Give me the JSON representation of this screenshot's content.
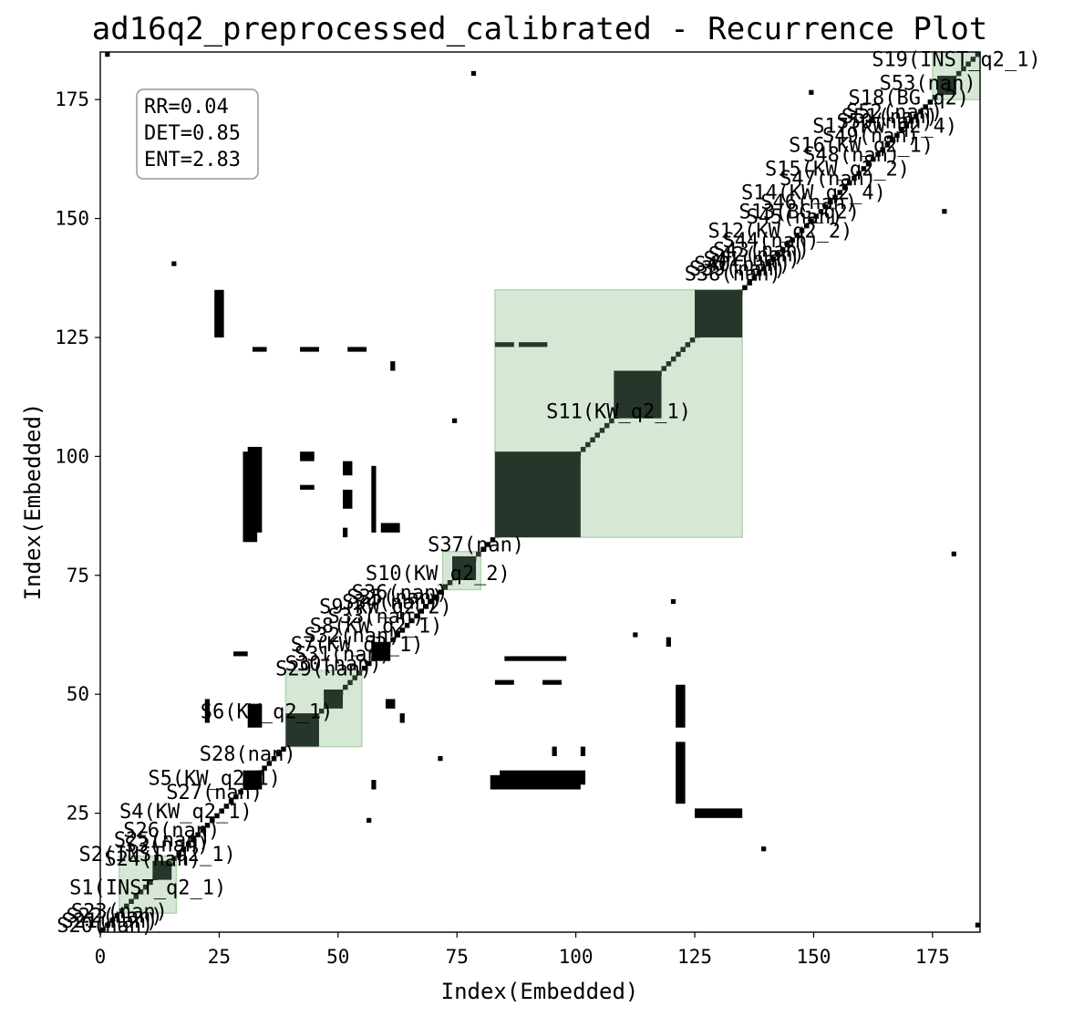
{
  "chart_data": {
    "type": "heatmap",
    "title": "ad16q2_preprocessed_calibrated - Recurrence Plot",
    "xlabel": "Index(Embedded)",
    "ylabel": "Index(Embedded)",
    "xlim": [
      0,
      185
    ],
    "ylim": [
      0,
      185
    ],
    "x_ticks": [
      0,
      25,
      50,
      75,
      100,
      125,
      150,
      175
    ],
    "y_ticks": [
      25,
      50,
      75,
      100,
      125,
      150,
      175
    ],
    "colors": {
      "recurrence": "#000000",
      "in_segment": "#27362a",
      "segment_fill": "#d7e7d6",
      "segment_edge": "#b3d4b1"
    },
    "stats_box": [
      "RR=0.04",
      "DET=0.85",
      "ENT=2.83"
    ],
    "segments": [
      {
        "label": "S1(INST_q2_1)",
        "start": 4,
        "end": 16
      },
      {
        "label": "S6(KW_q2_1)",
        "start": 39,
        "end": 55
      },
      {
        "label": "S10(KW_q2_2)",
        "start": 72,
        "end": 80
      },
      {
        "label": "S11(KW_q2_1)",
        "start": 83,
        "end": 135
      },
      {
        "label": "S19(INST_q2_1)",
        "start": 175,
        "end": 185
      }
    ],
    "segment_labels": [
      {
        "text": "S20(nan)",
        "x": 1,
        "y": 0
      },
      {
        "text": "S21(nan)",
        "x": 2,
        "y": 1
      },
      {
        "text": "S22(nan)",
        "x": 3,
        "y": 2
      },
      {
        "text": "S23(nan)",
        "x": 4,
        "y": 3
      },
      {
        "text": "S1(INST_q2_1)",
        "x": 10,
        "y": 8
      },
      {
        "text": "S2(INST_q2_1)",
        "x": 12,
        "y": 15
      },
      {
        "text": "S24(nan)",
        "x": 11,
        "y": 14
      },
      {
        "text": "S25(nan)",
        "x": 13,
        "y": 18
      },
      {
        "text": "S3(nan)",
        "x": 14,
        "y": 17
      },
      {
        "text": "S26(nan)",
        "x": 15,
        "y": 20
      },
      {
        "text": "S4(KW_q2_1)",
        "x": 18,
        "y": 24
      },
      {
        "text": "S27(nan)",
        "x": 24,
        "y": 28
      },
      {
        "text": "S5(KW_q2_1)",
        "x": 24,
        "y": 31
      },
      {
        "text": "S28(nan)",
        "x": 31,
        "y": 36
      },
      {
        "text": "S6(KW_q2_1)",
        "x": 35,
        "y": 45
      },
      {
        "text": "S29(nan)",
        "x": 47,
        "y": 54
      },
      {
        "text": "S30(nan)",
        "x": 49,
        "y": 55
      },
      {
        "text": "S31(nan)",
        "x": 51,
        "y": 57
      },
      {
        "text": "S7(KW_q2_1)",
        "x": 54,
        "y": 59
      },
      {
        "text": "S32(nan)",
        "x": 53,
        "y": 61
      },
      {
        "text": "S8(KW_q2_1)",
        "x": 58,
        "y": 63
      },
      {
        "text": "S33(nan)",
        "x": 58,
        "y": 65
      },
      {
        "text": "S9(KW_q2_2)",
        "x": 60,
        "y": 67
      },
      {
        "text": "S34(nan)",
        "x": 61,
        "y": 68
      },
      {
        "text": "S35(nan)",
        "x": 62,
        "y": 69
      },
      {
        "text": "S36(nan)",
        "x": 63,
        "y": 70
      },
      {
        "text": "S10(KW_q2_2)",
        "x": 71,
        "y": 74
      },
      {
        "text": "S37(nan)",
        "x": 79,
        "y": 80
      },
      {
        "text": "S11(KW_q2_1)",
        "x": 109,
        "y": 108
      },
      {
        "text": "S38(nan)",
        "x": 133,
        "y": 137
      },
      {
        "text": "S39(nan)",
        "x": 134,
        "y": 138
      },
      {
        "text": "S40(nan)",
        "x": 135,
        "y": 139
      },
      {
        "text": "S41(nan)",
        "x": 137,
        "y": 140
      },
      {
        "text": "S42(nan)",
        "x": 138,
        "y": 141
      },
      {
        "text": "S43(nan)",
        "x": 139,
        "y": 142
      },
      {
        "text": "S44(nan)",
        "x": 141,
        "y": 144
      },
      {
        "text": "S12(KW_q2_2)",
        "x": 143,
        "y": 146
      },
      {
        "text": "S45(nan)",
        "x": 146,
        "y": 149
      },
      {
        "text": "S13(BG_q2)",
        "x": 147,
        "y": 150
      },
      {
        "text": "S46(nan)",
        "x": 149,
        "y": 152
      },
      {
        "text": "S14(KW_q2_4)",
        "x": 150,
        "y": 154
      },
      {
        "text": "S47(nan)",
        "x": 153,
        "y": 157
      },
      {
        "text": "S15(KW_q2_2)",
        "x": 155,
        "y": 159
      },
      {
        "text": "S48(nan)",
        "x": 158,
        "y": 162
      },
      {
        "text": "S16(KW_q2_1)",
        "x": 160,
        "y": 164
      },
      {
        "text": "S49(nan)",
        "x": 162,
        "y": 166
      },
      {
        "text": "S17(KW_q2_4)",
        "x": 165,
        "y": 168
      },
      {
        "text": "S50(nan)",
        "x": 165,
        "y": 169
      },
      {
        "text": "S51(nan)",
        "x": 166,
        "y": 170
      },
      {
        "text": "S52(nan)",
        "x": 167,
        "y": 171
      },
      {
        "text": "S18(BG_q2)",
        "x": 170,
        "y": 174
      },
      {
        "text": "S53(nan)",
        "x": 174,
        "y": 177
      },
      {
        "text": "S19(INST_q2_1)",
        "x": 180,
        "y": 182
      }
    ],
    "blocks": [
      {
        "x": [
          83,
          101
        ],
        "y": [
          83,
          101
        ]
      },
      {
        "x": [
          108,
          118
        ],
        "y": [
          108,
          118
        ]
      },
      {
        "x": [
          125,
          135
        ],
        "y": [
          125,
          135
        ]
      },
      {
        "x": [
          39,
          46
        ],
        "y": [
          39,
          46
        ]
      },
      {
        "x": [
          74,
          79
        ],
        "y": [
          74,
          79
        ]
      },
      {
        "x": [
          47,
          51
        ],
        "y": [
          47,
          51
        ]
      },
      {
        "x": [
          30,
          34
        ],
        "y": [
          30,
          34
        ]
      },
      {
        "x": [
          57,
          61
        ],
        "y": [
          57,
          61
        ]
      },
      {
        "x": [
          11,
          15
        ],
        "y": [
          11,
          15
        ]
      },
      {
        "x": [
          176,
          180
        ],
        "y": [
          176,
          180
        ]
      },
      {
        "x": [
          82,
          101
        ],
        "y": [
          30,
          33
        ]
      },
      {
        "x": [
          30,
          33
        ],
        "y": [
          82,
          101
        ]
      },
      {
        "x": [
          125,
          135
        ],
        "y": [
          24,
          26
        ]
      },
      {
        "x": [
          24,
          26
        ],
        "y": [
          125,
          135
        ]
      },
      {
        "x": [
          31,
          34
        ],
        "y": [
          84,
          102
        ]
      },
      {
        "x": [
          84,
          102
        ],
        "y": [
          31,
          34
        ]
      },
      {
        "x": [
          85,
          98
        ],
        "y": [
          57,
          58
        ]
      },
      {
        "x": [
          83,
          87
        ],
        "y": [
          52,
          53
        ]
      },
      {
        "x": [
          93,
          97
        ],
        "y": [
          52,
          53
        ]
      },
      {
        "x": [
          42,
          46
        ],
        "y": [
          122,
          123
        ]
      },
      {
        "x": [
          52,
          56
        ],
        "y": [
          122,
          123
        ]
      },
      {
        "x": [
          32,
          35
        ],
        "y": [
          122,
          123
        ]
      },
      {
        "x": [
          83,
          87
        ],
        "y": [
          123,
          124
        ]
      },
      {
        "x": [
          88,
          94
        ],
        "y": [
          123,
          124
        ]
      },
      {
        "x": [
          59,
          63
        ],
        "y": [
          84,
          86
        ]
      },
      {
        "x": [
          42,
          45
        ],
        "y": [
          99,
          101
        ]
      },
      {
        "x": [
          42,
          45
        ],
        "y": [
          93,
          94
        ]
      },
      {
        "x": [
          51,
          53
        ],
        "y": [
          96,
          99
        ]
      },
      {
        "x": [
          51,
          53
        ],
        "y": [
          89,
          93
        ]
      },
      {
        "x": [
          51,
          52
        ],
        "y": [
          83,
          85
        ]
      },
      {
        "x": [
          57,
          58
        ],
        "y": [
          84,
          98
        ]
      },
      {
        "x": [
          121,
          123
        ],
        "y": [
          27,
          40
        ]
      },
      {
        "x": [
          121,
          123
        ],
        "y": [
          43,
          52
        ]
      },
      {
        "x": [
          119,
          120
        ],
        "y": [
          60,
          62
        ]
      },
      {
        "x": [
          22,
          23
        ],
        "y": [
          44,
          49
        ]
      },
      {
        "x": [
          60,
          62
        ],
        "y": [
          47,
          49
        ]
      },
      {
        "x": [
          63,
          64
        ],
        "y": [
          44,
          46
        ]
      },
      {
        "x": [
          112,
          113
        ],
        "y": [
          62,
          63
        ]
      },
      {
        "x": [
          74,
          75
        ],
        "y": [
          107,
          108
        ]
      },
      {
        "x": [
          61,
          62
        ],
        "y": [
          118,
          120
        ]
      },
      {
        "x": [
          101,
          102
        ],
        "y": [
          37,
          39
        ]
      },
      {
        "x": [
          95,
          96
        ],
        "y": [
          37,
          39
        ]
      },
      {
        "x": [
          57,
          58
        ],
        "y": [
          30,
          32
        ]
      },
      {
        "x": [
          31,
          34
        ],
        "y": [
          43,
          48
        ]
      },
      {
        "x": [
          28,
          31
        ],
        "y": [
          58,
          59
        ]
      },
      {
        "x": [
          15,
          16
        ],
        "y": [
          140,
          141
        ]
      },
      {
        "x": [
          120,
          121
        ],
        "y": [
          69,
          70
        ]
      },
      {
        "x": [
          71,
          72
        ],
        "y": [
          36,
          37
        ]
      },
      {
        "x": [
          78,
          79
        ],
        "y": [
          180,
          181
        ]
      },
      {
        "x": [
          149,
          150
        ],
        "y": [
          176,
          177
        ]
      },
      {
        "x": [
          177,
          178
        ],
        "y": [
          151,
          152
        ]
      },
      {
        "x": [
          179,
          180
        ],
        "y": [
          79,
          80
        ]
      },
      {
        "x": [
          139,
          140
        ],
        "y": [
          17,
          18
        ]
      },
      {
        "x": [
          56,
          57
        ],
        "y": [
          23,
          24
        ]
      },
      {
        "x": [
          1,
          2
        ],
        "y": [
          184,
          185
        ]
      },
      {
        "x": [
          184,
          185
        ],
        "y": [
          184,
          185
        ]
      },
      {
        "x": [
          184,
          185
        ],
        "y": [
          1,
          2
        ]
      }
    ]
  }
}
